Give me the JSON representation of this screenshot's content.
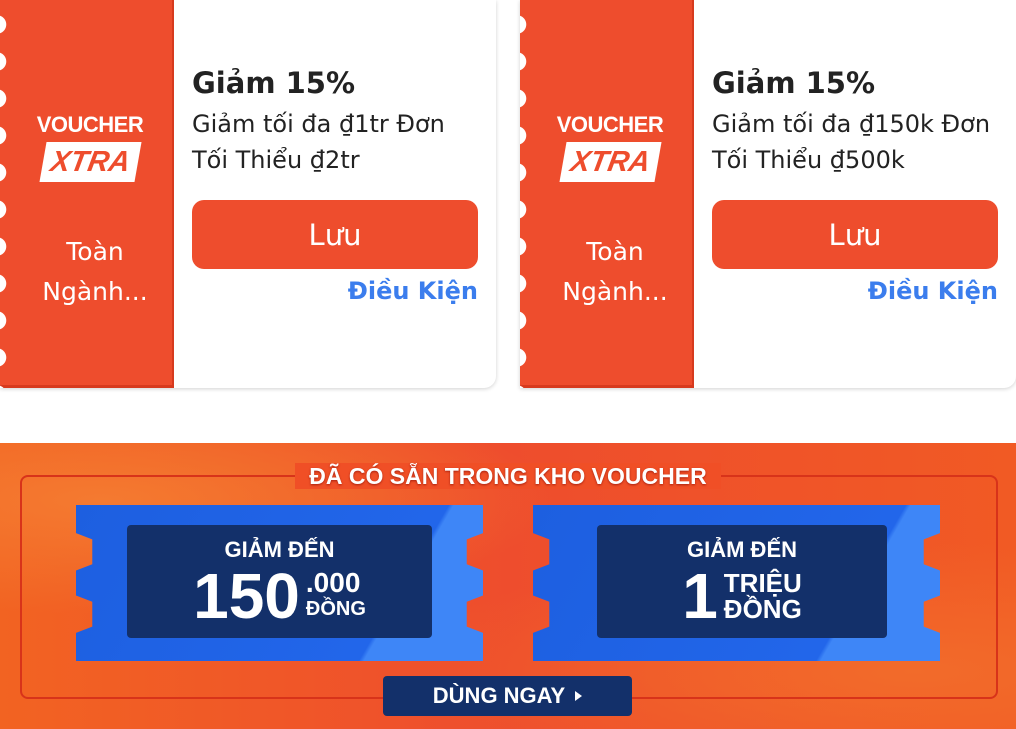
{
  "colors": {
    "brand": "#ee4d2d",
    "link": "#3b7ded",
    "ticket_blue": "#2266ea",
    "ticket_dark": "#13306a"
  },
  "vouchers": [
    {
      "logo_top": "VOUCHER",
      "logo_bottom": "XTRA",
      "scope": "Toàn Ngành...",
      "title": "Giảm 15%",
      "description": "Giảm tối đa ₫1tr Đơn Tối Thiểu ₫2tr",
      "save_label": "Lưu",
      "conditions_label": "Điều Kiện"
    },
    {
      "logo_top": "VOUCHER",
      "logo_bottom": "XTRA",
      "scope": "Toàn Ngành...",
      "title": "Giảm 15%",
      "description": "Giảm tối đa ₫150k Đơn Tối Thiểu ₫500k",
      "save_label": "Lưu",
      "conditions_label": "Điều Kiện"
    }
  ],
  "banner": {
    "title": "ĐÃ CÓ SẴN TRONG KHO VOUCHER",
    "tickets": [
      {
        "label": "GIẢM ĐẾN",
        "amount": "150",
        "suffix1": ".000",
        "suffix2": "ĐỒNG"
      },
      {
        "label": "GIẢM ĐẾN",
        "amount": "1",
        "suffix1": "TRIỆU",
        "suffix2": "ĐỒNG"
      }
    ],
    "cta_label": "DÙNG NGAY",
    "cta_icon": "play-arrow-icon"
  }
}
